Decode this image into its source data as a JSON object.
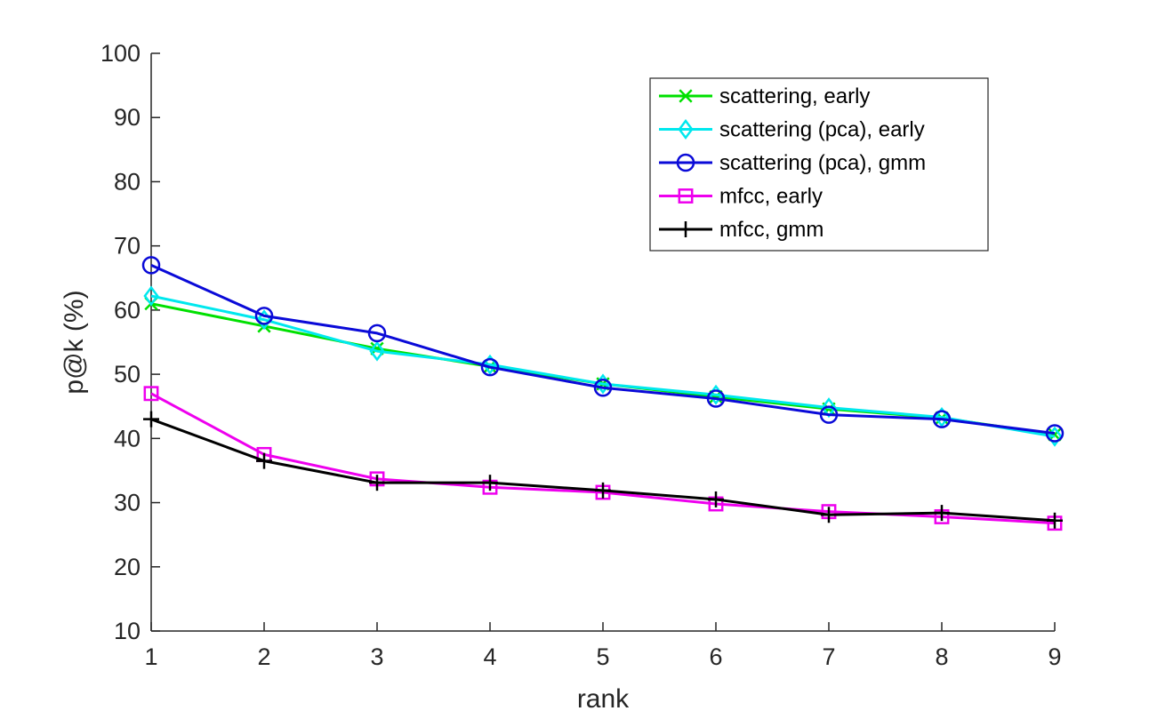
{
  "chart_data": {
    "type": "line",
    "title": "",
    "xlabel": "rank",
    "ylabel": "p@k (%)",
    "xlim": [
      1,
      9
    ],
    "ylim": [
      10,
      100
    ],
    "x": [
      1,
      2,
      3,
      4,
      5,
      6,
      7,
      8,
      9
    ],
    "xticks": [
      "1",
      "2",
      "3",
      "4",
      "5",
      "6",
      "7",
      "8",
      "9"
    ],
    "yticks": [
      "10",
      "20",
      "30",
      "40",
      "50",
      "60",
      "70",
      "80",
      "90",
      "100"
    ],
    "grid": false,
    "legend_position": "top-right",
    "series": [
      {
        "name": "scattering, early",
        "color": "#00e000",
        "marker": "x",
        "values": [
          61,
          57.5,
          54,
          51.2,
          48.5,
          46.5,
          44.6,
          43.2,
          40.6
        ]
      },
      {
        "name": "scattering (pca), early",
        "color": "#00e8ee",
        "marker": "diamond",
        "values": [
          62.2,
          58.5,
          53.6,
          51.5,
          48.5,
          46.8,
          44.8,
          43.3,
          40.3
        ]
      },
      {
        "name": "scattering (pca), gmm",
        "color": "#0a0ad8",
        "marker": "circle",
        "values": [
          67,
          59.1,
          56.4,
          51.1,
          47.9,
          46.2,
          43.7,
          43,
          40.8
        ]
      },
      {
        "name": "mfcc, early",
        "color": "#ee00ee",
        "marker": "square",
        "values": [
          47,
          37.5,
          33.7,
          32.4,
          31.6,
          29.8,
          28.6,
          27.8,
          26.8
        ]
      },
      {
        "name": "mfcc, gmm",
        "color": "#000000",
        "marker": "plus",
        "values": [
          43,
          36.5,
          33.1,
          33.1,
          31.9,
          30.5,
          28.1,
          28.4,
          27.2
        ]
      }
    ]
  }
}
